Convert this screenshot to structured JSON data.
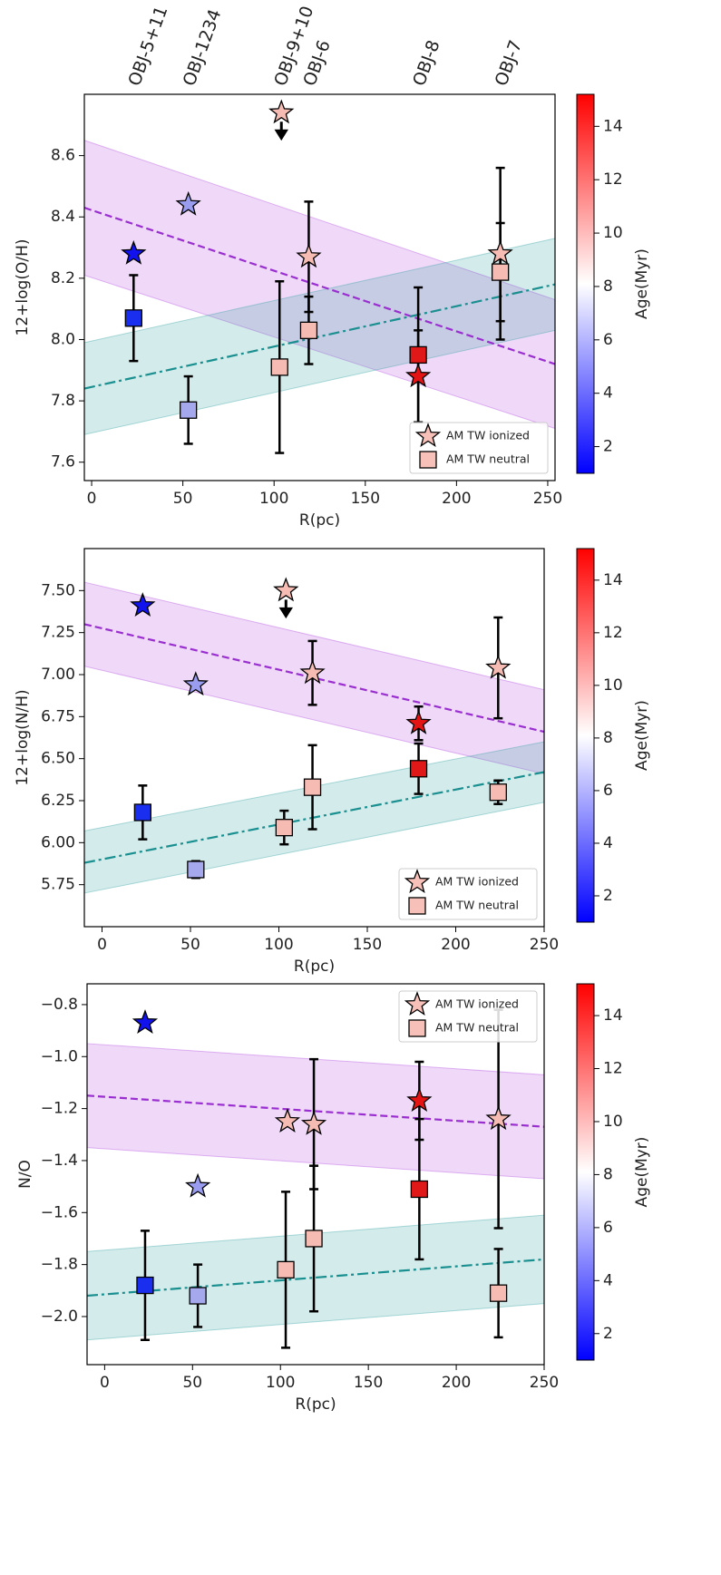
{
  "chart_data": [
    {
      "type": "scatter",
      "xlabel": "R(pc)",
      "ylabel": "12+log(O/H)",
      "xlim": [
        -4,
        254
      ],
      "xticks": [
        0,
        50,
        100,
        150,
        200,
        250
      ],
      "ylim": [
        7.54,
        8.8
      ],
      "yticks": [
        7.6,
        7.8,
        {
          "value": 8.0,
          "label": "8.0"
        },
        8.2,
        8.4,
        8.6
      ],
      "legend": "lower right",
      "top_labels": {
        "texts": [
          "OBJ-5+11",
          "OBJ-1234",
          "OBJ-9+10",
          "OBJ-6",
          "OBJ-8",
          "OBJ-7"
        ],
        "x": [
          23,
          53,
          103,
          119,
          179,
          224
        ],
        "color": "#1a1aff"
      },
      "series": [
        {
          "name": "AM TW ionized",
          "marker": "star",
          "legend_color": "#f7c0b8",
          "x": [
            23,
            53,
            104,
            119,
            179,
            224
          ],
          "values": [
            8.28,
            8.44,
            8.74,
            8.27,
            7.88,
            8.28
          ],
          "errors": [
            null,
            null,
            null,
            0.18,
            0.15,
            0.28
          ],
          "upper_limit": [
            false,
            false,
            true,
            false,
            false,
            false
          ],
          "colors": [
            "#1212ee",
            "#9a9cf0",
            "#f6bcb3",
            "#f6bcb3",
            "#e41414",
            "#f6bcb3"
          ]
        },
        {
          "name": "AM TW neutral",
          "marker": "square",
          "legend_color": "#f7c0b8",
          "x": [
            23,
            53,
            103,
            119,
            179,
            224
          ],
          "values": [
            8.07,
            7.77,
            7.91,
            8.03,
            7.95,
            8.22
          ],
          "errors": [
            0.14,
            0.11,
            0.28,
            0.11,
            0.22,
            0.16
          ],
          "upper_limit": [
            false,
            false,
            false,
            false,
            false,
            false
          ],
          "colors": [
            "#1a2ef0",
            "#a6a8ee",
            "#f6bcb3",
            "#f6bcb3",
            "#e01818",
            "#f6bcb3"
          ]
        }
      ],
      "fits": [
        {
          "color": "#9a2fd0",
          "dash": "dashed",
          "band_color": "#b44fe0",
          "x": [
            -4,
            254
          ],
          "values": [
            8.43,
            7.92
          ],
          "lower": [
            8.21,
            7.71
          ],
          "upper": [
            8.65,
            8.13
          ]
        },
        {
          "color": "#1a8f8f",
          "dash": "dashdot",
          "band_color": "#3aa6a6",
          "x": [
            -4,
            254
          ],
          "values": [
            7.84,
            8.18
          ],
          "lower": [
            7.69,
            8.03
          ],
          "upper": [
            7.99,
            8.33
          ]
        }
      ],
      "colorbar": {
        "label": "Age(Myr)",
        "lim": [
          1,
          15.2
        ],
        "ticks": [
          2,
          4,
          6,
          8,
          10,
          12,
          14
        ]
      }
    },
    {
      "type": "scatter",
      "xlabel": "R(pc)",
      "ylabel": "12+log(N/H)",
      "xlim": [
        -10,
        250
      ],
      "xticks": [
        0,
        50,
        100,
        150,
        200,
        250
      ],
      "ylim": [
        5.5,
        7.75
      ],
      "yticks": [
        5.75,
        {
          "value": 6.0,
          "label": "6.00"
        },
        6.25,
        {
          "value": 6.5,
          "label": "6.50"
        },
        6.75,
        {
          "value": 7.0,
          "label": "7.00"
        },
        7.25,
        {
          "value": 7.5,
          "label": "7.50"
        }
      ],
      "legend": "lower right",
      "series": [
        {
          "name": "AM TW ionized",
          "marker": "star",
          "legend_color": "#f7c0b8",
          "x": [
            23,
            53,
            104,
            119,
            179,
            224
          ],
          "values": [
            7.41,
            6.94,
            7.5,
            7.01,
            6.71,
            7.04
          ],
          "errors": [
            null,
            null,
            null,
            0.19,
            0.1,
            0.3
          ],
          "upper_limit": [
            false,
            false,
            true,
            false,
            false,
            false
          ],
          "colors": [
            "#1212ee",
            "#9a9cf0",
            "#f6bcb3",
            "#f6bcb3",
            "#e41414",
            "#f6bcb3"
          ]
        },
        {
          "name": "AM TW neutral",
          "marker": "square",
          "legend_color": "#f7c0b8",
          "x": [
            23,
            53,
            103,
            119,
            179,
            224
          ],
          "values": [
            6.18,
            5.84,
            6.09,
            6.33,
            6.44,
            6.3
          ],
          "errors": [
            0.16,
            0.05,
            0.1,
            0.25,
            0.15,
            0.07
          ],
          "upper_limit": [
            false,
            false,
            false,
            false,
            false,
            false
          ],
          "colors": [
            "#1a2ef0",
            "#a6a8ee",
            "#f6bcb3",
            "#f6bcb3",
            "#e01818",
            "#f6bcb3"
          ]
        }
      ],
      "fits": [
        {
          "color": "#9a2fd0",
          "dash": "dashed",
          "band_color": "#b44fe0",
          "x": [
            -10,
            250
          ],
          "values": [
            7.3,
            6.66
          ],
          "lower": [
            7.05,
            6.41
          ],
          "upper": [
            7.55,
            6.91
          ]
        },
        {
          "color": "#1a8f8f",
          "dash": "dashdot",
          "band_color": "#3aa6a6",
          "x": [
            -10,
            250
          ],
          "values": [
            5.88,
            6.42
          ],
          "lower": [
            5.7,
            6.24
          ],
          "upper": [
            6.07,
            6.6
          ]
        }
      ],
      "colorbar": {
        "label": "Age(Myr)",
        "lim": [
          1,
          15.2
        ],
        "ticks": [
          2,
          4,
          6,
          8,
          10,
          12,
          14
        ]
      }
    },
    {
      "type": "scatter",
      "xlabel": "R(pc)",
      "ylabel": "N/O",
      "xlim": [
        -10,
        250
      ],
      "xticks": [
        0,
        50,
        100,
        150,
        200,
        250
      ],
      "ylim": [
        -2.185,
        -0.72
      ],
      "yticks": [
        {
          "value": -2.0,
          "label": "−2.0"
        },
        {
          "value": -1.8,
          "label": "−1.8"
        },
        {
          "value": -1.6,
          "label": "−1.6"
        },
        {
          "value": -1.4,
          "label": "−1.4"
        },
        {
          "value": -1.2,
          "label": "−1.2"
        },
        {
          "value": -1.0,
          "label": "−1.0"
        },
        {
          "value": -0.8,
          "label": "−0.8"
        }
      ],
      "legend": "upper right",
      "series": [
        {
          "name": "AM TW ionized",
          "marker": "star",
          "legend_color": "#f7c0b8",
          "x": [
            23,
            53,
            104,
            119,
            179,
            224
          ],
          "values": [
            -0.87,
            -1.5,
            -1.25,
            -1.26,
            -1.17,
            -1.24
          ],
          "errors": [
            null,
            null,
            null,
            0.25,
            0.15,
            0.42
          ],
          "upper_limit": [
            false,
            false,
            false,
            false,
            false,
            false
          ],
          "colors": [
            "#1212ee",
            "#9a9cf0",
            "#f6bcb3",
            "#f6bcb3",
            "#e41414",
            "#f6bcb3"
          ]
        },
        {
          "name": "AM TW neutral",
          "marker": "square",
          "legend_color": "#f7c0b8",
          "x": [
            23,
            53,
            103,
            119,
            179,
            224
          ],
          "values": [
            -1.88,
            -1.92,
            -1.82,
            -1.7,
            -1.51,
            -1.91
          ],
          "errors": [
            0.21,
            0.12,
            0.3,
            0.28,
            0.27,
            0.17
          ],
          "upper_limit": [
            false,
            false,
            false,
            false,
            false,
            false
          ],
          "colors": [
            "#1a2ef0",
            "#a6a8ee",
            "#f6bcb3",
            "#f6bcb3",
            "#e01818",
            "#f6bcb3"
          ]
        }
      ],
      "fits": [
        {
          "color": "#9a2fd0",
          "dash": "dashed",
          "band_color": "#b44fe0",
          "x": [
            -10,
            250
          ],
          "values": [
            -1.15,
            -1.27
          ],
          "lower": [
            -1.35,
            -1.47
          ],
          "upper": [
            -0.95,
            -1.07
          ]
        },
        {
          "color": "#1a8f8f",
          "dash": "dashdot",
          "band_color": "#3aa6a6",
          "x": [
            -10,
            250
          ],
          "values": [
            -1.92,
            -1.78
          ],
          "lower": [
            -2.09,
            -1.95
          ],
          "upper": [
            -1.75,
            -1.61
          ]
        }
      ],
      "colorbar": {
        "label": "Age(Myr)",
        "lim": [
          1,
          15.2
        ],
        "ticks": [
          2,
          4,
          6,
          8,
          10,
          12,
          14
        ]
      }
    }
  ]
}
